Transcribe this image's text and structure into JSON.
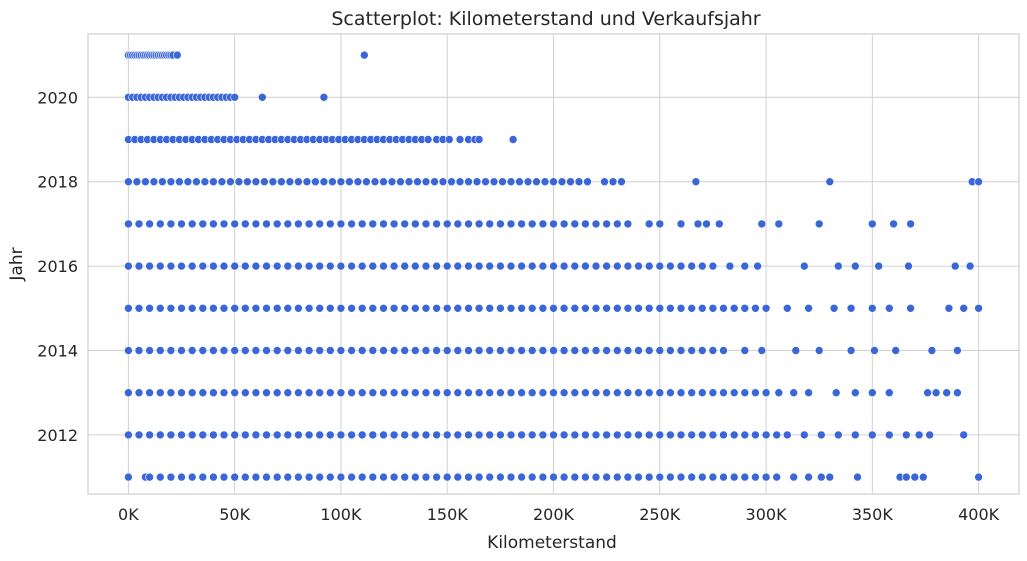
{
  "chart_data": {
    "type": "scatter",
    "title": "Scatterplot: Kilometerstand und Verkaufsjahr",
    "xlabel": "Kilometerstand",
    "ylabel": "Jahr",
    "xlim": [
      -19000,
      419000
    ],
    "ylim": [
      2010.6,
      2021.5
    ],
    "x_ticks": [
      0,
      50000,
      100000,
      150000,
      200000,
      250000,
      300000,
      350000,
      400000
    ],
    "x_tick_labels": [
      "0K",
      "50K",
      "100K",
      "150K",
      "200K",
      "250K",
      "300K",
      "350K",
      "400K"
    ],
    "y_ticks": [
      2012,
      2014,
      2016,
      2018,
      2020
    ],
    "y_tick_labels": [
      "2012",
      "2014",
      "2016",
      "2018",
      "2020"
    ],
    "grid": true,
    "legend": "none",
    "color": "#3a66d8",
    "series": [
      {
        "points_by_year": {
          "2021": [
            0,
            1000,
            2000,
            3000,
            4000,
            5000,
            6000,
            7000,
            8000,
            9000,
            10000,
            11000,
            12000,
            13000,
            14000,
            15000,
            16000,
            17000,
            18000,
            19000,
            20000,
            21000,
            23000,
            111000
          ],
          "2020": [
            0,
            2000,
            4000,
            6000,
            8000,
            10000,
            12000,
            14000,
            16000,
            18000,
            20000,
            22000,
            24000,
            26000,
            28000,
            30000,
            32000,
            34000,
            36000,
            38000,
            40000,
            42000,
            44000,
            46000,
            48000,
            50000,
            63000,
            92000
          ],
          "2019": [
            0,
            3000,
            6000,
            9000,
            12000,
            15000,
            18000,
            21000,
            24000,
            27000,
            30000,
            33000,
            36000,
            39000,
            42000,
            45000,
            48000,
            51000,
            54000,
            57000,
            60000,
            63000,
            66000,
            69000,
            72000,
            75000,
            78000,
            81000,
            84000,
            87000,
            90000,
            93000,
            96000,
            99000,
            102000,
            105000,
            108000,
            111000,
            114000,
            117000,
            120000,
            123000,
            126000,
            129000,
            132000,
            135000,
            138000,
            141000,
            145000,
            148000,
            151000,
            156000,
            160000,
            163000,
            165000,
            181000
          ],
          "2018": [
            0,
            4000,
            8000,
            12000,
            16000,
            20000,
            24000,
            28000,
            32000,
            36000,
            40000,
            44000,
            48000,
            52000,
            56000,
            60000,
            64000,
            68000,
            72000,
            76000,
            80000,
            84000,
            88000,
            92000,
            96000,
            100000,
            104000,
            108000,
            112000,
            116000,
            120000,
            124000,
            128000,
            132000,
            136000,
            140000,
            144000,
            148000,
            152000,
            156000,
            160000,
            164000,
            168000,
            172000,
            176000,
            180000,
            184000,
            188000,
            192000,
            196000,
            200000,
            204000,
            208000,
            212000,
            216000,
            224000,
            228000,
            232000,
            267000,
            330000,
            397000,
            400000
          ],
          "2017": [
            0,
            5000,
            10000,
            15000,
            20000,
            25000,
            30000,
            35000,
            40000,
            45000,
            50000,
            55000,
            60000,
            65000,
            70000,
            75000,
            80000,
            85000,
            90000,
            95000,
            100000,
            105000,
            110000,
            115000,
            120000,
            125000,
            130000,
            135000,
            140000,
            145000,
            150000,
            155000,
            160000,
            165000,
            170000,
            175000,
            180000,
            185000,
            190000,
            195000,
            200000,
            205000,
            210000,
            215000,
            220000,
            225000,
            230000,
            235000,
            245000,
            250000,
            260000,
            268000,
            272000,
            278000,
            298000,
            306000,
            325000,
            350000,
            360000,
            368000
          ],
          "2016": [
            0,
            5000,
            10000,
            15000,
            20000,
            25000,
            30000,
            35000,
            40000,
            45000,
            50000,
            55000,
            60000,
            65000,
            70000,
            75000,
            80000,
            85000,
            90000,
            95000,
            100000,
            105000,
            110000,
            115000,
            120000,
            125000,
            130000,
            135000,
            140000,
            145000,
            150000,
            155000,
            160000,
            165000,
            170000,
            175000,
            180000,
            185000,
            190000,
            195000,
            200000,
            205000,
            210000,
            215000,
            220000,
            225000,
            230000,
            235000,
            240000,
            245000,
            250000,
            255000,
            260000,
            265000,
            270000,
            275000,
            283000,
            290000,
            296000,
            318000,
            334000,
            342000,
            353000,
            367000,
            389000,
            396000
          ],
          "2015": [
            0,
            5000,
            10000,
            15000,
            20000,
            25000,
            30000,
            35000,
            40000,
            45000,
            50000,
            55000,
            60000,
            65000,
            70000,
            75000,
            80000,
            85000,
            90000,
            95000,
            100000,
            105000,
            110000,
            115000,
            120000,
            125000,
            130000,
            135000,
            140000,
            145000,
            150000,
            155000,
            160000,
            165000,
            170000,
            175000,
            180000,
            185000,
            190000,
            195000,
            200000,
            205000,
            210000,
            215000,
            220000,
            225000,
            230000,
            235000,
            240000,
            245000,
            250000,
            255000,
            260000,
            265000,
            270000,
            275000,
            280000,
            285000,
            290000,
            295000,
            300000,
            310000,
            320000,
            332000,
            340000,
            350000,
            358000,
            368000,
            386000,
            393000,
            400000
          ],
          "2014": [
            0,
            5000,
            10000,
            15000,
            20000,
            25000,
            30000,
            35000,
            40000,
            45000,
            50000,
            55000,
            60000,
            65000,
            70000,
            75000,
            80000,
            85000,
            90000,
            95000,
            100000,
            105000,
            110000,
            115000,
            120000,
            125000,
            130000,
            135000,
            140000,
            145000,
            150000,
            155000,
            160000,
            165000,
            170000,
            175000,
            180000,
            185000,
            190000,
            195000,
            200000,
            205000,
            210000,
            215000,
            220000,
            225000,
            230000,
            235000,
            240000,
            245000,
            250000,
            255000,
            260000,
            265000,
            270000,
            275000,
            280000,
            290000,
            298000,
            314000,
            325000,
            340000,
            351000,
            361000,
            378000,
            390000
          ],
          "2013": [
            0,
            5000,
            10000,
            15000,
            20000,
            25000,
            30000,
            35000,
            40000,
            45000,
            50000,
            55000,
            60000,
            65000,
            70000,
            75000,
            80000,
            85000,
            90000,
            95000,
            100000,
            105000,
            110000,
            115000,
            120000,
            125000,
            130000,
            135000,
            140000,
            145000,
            150000,
            155000,
            160000,
            165000,
            170000,
            175000,
            180000,
            185000,
            190000,
            195000,
            200000,
            205000,
            210000,
            215000,
            220000,
            225000,
            230000,
            235000,
            240000,
            245000,
            250000,
            255000,
            260000,
            265000,
            270000,
            275000,
            280000,
            285000,
            290000,
            295000,
            300000,
            306000,
            313000,
            320000,
            333000,
            342000,
            350000,
            358000,
            376000,
            380000,
            385000,
            390000
          ],
          "2012": [
            0,
            5000,
            10000,
            15000,
            20000,
            25000,
            30000,
            35000,
            40000,
            45000,
            50000,
            55000,
            60000,
            65000,
            70000,
            75000,
            80000,
            85000,
            90000,
            95000,
            100000,
            105000,
            110000,
            115000,
            120000,
            125000,
            130000,
            135000,
            140000,
            145000,
            150000,
            155000,
            160000,
            165000,
            170000,
            175000,
            180000,
            185000,
            190000,
            195000,
            200000,
            205000,
            210000,
            215000,
            220000,
            225000,
            230000,
            235000,
            240000,
            245000,
            250000,
            255000,
            260000,
            265000,
            270000,
            275000,
            280000,
            285000,
            290000,
            295000,
            300000,
            305000,
            310000,
            318000,
            326000,
            334000,
            342000,
            350000,
            358000,
            366000,
            372000,
            377000,
            393000
          ],
          "2011": [
            0,
            8000,
            10000,
            15000,
            20000,
            25000,
            30000,
            35000,
            40000,
            45000,
            50000,
            55000,
            60000,
            65000,
            70000,
            75000,
            80000,
            85000,
            90000,
            95000,
            100000,
            105000,
            110000,
            115000,
            120000,
            125000,
            130000,
            135000,
            140000,
            145000,
            150000,
            155000,
            160000,
            165000,
            170000,
            175000,
            180000,
            185000,
            190000,
            195000,
            200000,
            205000,
            210000,
            215000,
            220000,
            225000,
            230000,
            235000,
            240000,
            245000,
            250000,
            255000,
            260000,
            265000,
            270000,
            275000,
            280000,
            285000,
            290000,
            295000,
            300000,
            305000,
            313000,
            320000,
            326000,
            330000,
            343000,
            363000,
            366000,
            370000,
            374000,
            400000
          ]
        }
      }
    ]
  }
}
